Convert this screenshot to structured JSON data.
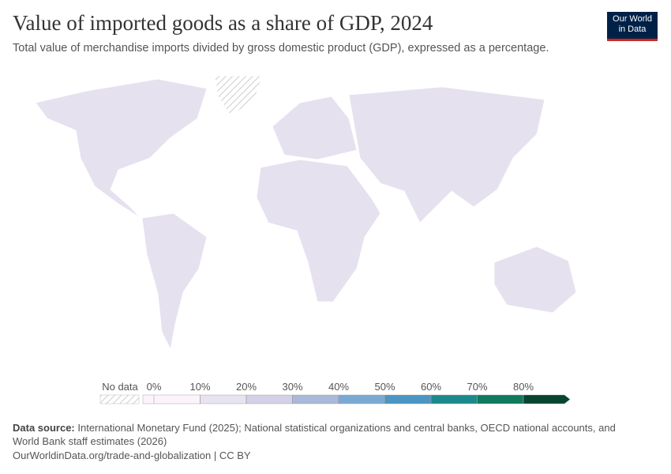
{
  "header": {
    "title": "Value of imported goods as a share of GDP, 2024",
    "subtitle": "Total value of merchandise imports divided by gross domestic product (GDP), expressed as a percentage.",
    "logo": [
      "Our World",
      "in Data"
    ]
  },
  "legend": {
    "no_data": "No data",
    "ticks": [
      {
        "value": 0,
        "label": "0%"
      },
      {
        "value": 10,
        "label": "10%"
      },
      {
        "value": 20,
        "label": "20%"
      },
      {
        "value": 30,
        "label": "30%"
      },
      {
        "value": 40,
        "label": "40%"
      },
      {
        "value": 50,
        "label": "50%"
      },
      {
        "value": 60,
        "label": "60%"
      },
      {
        "value": 70,
        "label": "70%"
      },
      {
        "value": 80,
        "label": "80%"
      }
    ],
    "colors": [
      "#fbf4fa",
      "#e8e3f0",
      "#d2d1e7",
      "#aab9d9",
      "#7aaad4",
      "#4a95c4",
      "#1c8a8d",
      "#0f7a5c",
      "#064530"
    ]
  },
  "footer": {
    "source_label": "Data source:",
    "source": "International Monetary Fund (2025); National statistical organizations and central banks, OECD national accounts, and World Bank staff estimates (2026)",
    "url": "OurWorldinData.org/trade-and-globalization | CC BY"
  }
}
